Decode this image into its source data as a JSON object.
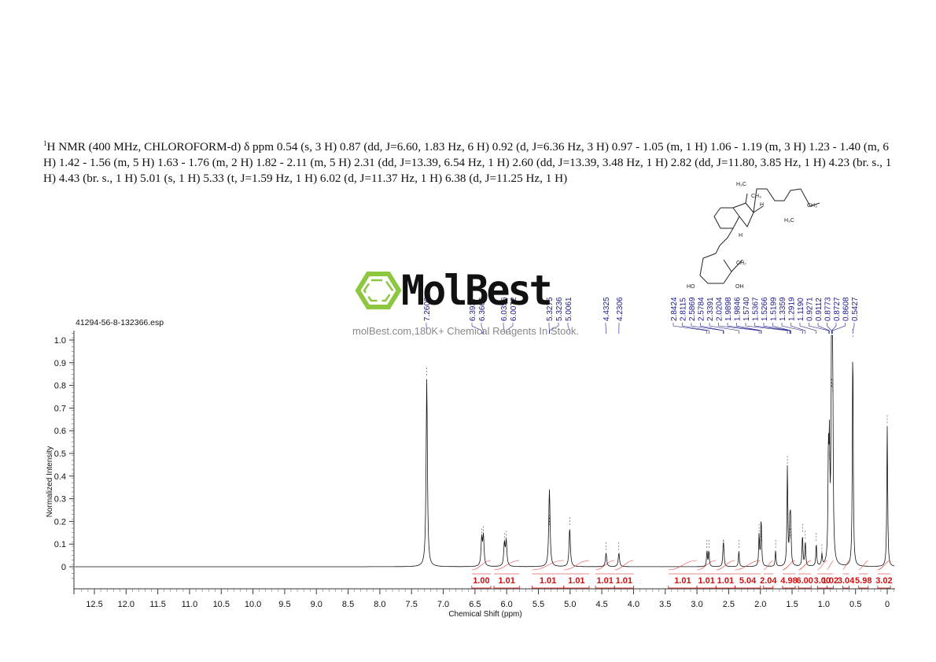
{
  "header": {
    "description_prefix": "1",
    "description": "H NMR (400 MHz, CHLOROFORM-d) δ ppm 0.54 (s, 3 H) 0.87 (dd, J=6.60, 1.83 Hz, 6 H) 0.92 (d, J=6.36 Hz, 3 H) 0.97 - 1.05 (m, 1 H) 1.06 - 1.19 (m, 3 H) 1.23 - 1.40 (m, 6 H) 1.42 - 1.56 (m, 5 H) 1.63 - 1.76 (m, 2 H) 1.82 - 2.11 (m, 5 H) 2.31 (dd, J=13.39, 6.54 Hz, 1 H) 2.60 (dd, J=13.39, 3.48 Hz, 1 H) 2.82 (dd, J=11.80, 3.85 Hz, 1 H) 4.23 (br. s., 1 H) 4.43 (br. s., 1 H) 5.01 (s, 1 H) 5.33 (t, J=1.59 Hz, 1 H) 6.02 (d, J=11.37 Hz, 1 H) 6.38 (d, J=11.25 Hz, 1 H)"
  },
  "watermark": {
    "logo_text": "MolBest",
    "tagline": "molBest.com,180K+ Chemical Reagents In Stock.",
    "logo_color": "#8dc63f"
  },
  "structure": {
    "labels": [
      "H3C",
      "CH3",
      "H",
      "CH3",
      "H3C",
      "H",
      "CH2",
      "HO",
      "OH"
    ]
  },
  "chart_data": {
    "type": "line",
    "title": "",
    "file_label": "41294-56-8-132366.esp",
    "xlabel": "Chemical Shift (ppm)",
    "ylabel": "Normalized Intensity",
    "xlim": [
      12.7,
      -0.1
    ],
    "ylim": [
      -0.05,
      1.05
    ],
    "x_ticks": [
      "12.5",
      "12.0",
      "11.5",
      "11.0",
      "10.5",
      "10.0",
      "9.5",
      "9.0",
      "8.5",
      "8.0",
      "7.5",
      "7.0",
      "6.5",
      "6.0",
      "5.5",
      "5.0",
      "4.5",
      "4.0",
      "3.5",
      "3.0",
      "2.5",
      "2.0",
      "1.5",
      "1.0",
      "0.5",
      "0"
    ],
    "y_ticks": [
      "1.0",
      "0.9",
      "0.8",
      "0.7",
      "0.6",
      "0.5",
      "0.4",
      "0.3",
      "0.2",
      "0.1",
      "0"
    ],
    "grid": false,
    "peak_labels": [
      "7.2600",
      "6.3937",
      "6.3666",
      "6.0356",
      "6.0072",
      "5.3275",
      "5.3236",
      "5.0061",
      "4.4325",
      "4.2306",
      "2.8424",
      "2.8115",
      "2.5869",
      "2.5784",
      "2.3391",
      "2.0204",
      "1.9898",
      "1.9846",
      "1.5740",
      "1.5367",
      "1.5266",
      "1.5199",
      "1.3359",
      "1.2919",
      "1.1190",
      "0.9271",
      "0.9112",
      "0.8773",
      "0.8727",
      "0.8608",
      "0.5427"
    ],
    "peaks": [
      {
        "ppm": 7.26,
        "intensity": 0.83
      },
      {
        "ppm": 6.394,
        "intensity": 0.12
      },
      {
        "ppm": 6.367,
        "intensity": 0.13
      },
      {
        "ppm": 6.036,
        "intensity": 0.1
      },
      {
        "ppm": 6.007,
        "intensity": 0.11
      },
      {
        "ppm": 5.328,
        "intensity": 0.18
      },
      {
        "ppm": 5.324,
        "intensity": 0.17
      },
      {
        "ppm": 5.006,
        "intensity": 0.17
      },
      {
        "ppm": 4.433,
        "intensity": 0.06
      },
      {
        "ppm": 4.231,
        "intensity": 0.06
      },
      {
        "ppm": 2.842,
        "intensity": 0.07
      },
      {
        "ppm": 2.812,
        "intensity": 0.07
      },
      {
        "ppm": 2.587,
        "intensity": 0.07
      },
      {
        "ppm": 2.578,
        "intensity": 0.07
      },
      {
        "ppm": 2.339,
        "intensity": 0.07
      },
      {
        "ppm": 2.02,
        "intensity": 0.14
      },
      {
        "ppm": 1.99,
        "intensity": 0.12
      },
      {
        "ppm": 1.985,
        "intensity": 0.1
      },
      {
        "ppm": 1.76,
        "intensity": 0.07
      },
      {
        "ppm": 1.574,
        "intensity": 0.44
      },
      {
        "ppm": 1.537,
        "intensity": 0.15
      },
      {
        "ppm": 1.527,
        "intensity": 0.12
      },
      {
        "ppm": 1.52,
        "intensity": 0.11
      },
      {
        "ppm": 1.336,
        "intensity": 0.14
      },
      {
        "ppm": 1.292,
        "intensity": 0.11
      },
      {
        "ppm": 1.119,
        "intensity": 0.1
      },
      {
        "ppm": 1.03,
        "intensity": 0.05
      },
      {
        "ppm": 0.927,
        "intensity": 0.47
      },
      {
        "ppm": 0.911,
        "intensity": 0.46
      },
      {
        "ppm": 0.877,
        "intensity": 0.78
      },
      {
        "ppm": 0.873,
        "intensity": 0.78
      },
      {
        "ppm": 0.861,
        "intensity": 0.76
      },
      {
        "ppm": 0.543,
        "intensity": 1.0
      },
      {
        "ppm": 0.0,
        "intensity": 0.62
      }
    ],
    "integrals": [
      {
        "label": "1.00",
        "from": 6.55,
        "to": 6.25
      },
      {
        "label": "1.01",
        "from": 6.2,
        "to": 5.8
      },
      {
        "label": "1.01",
        "from": 5.6,
        "to": 5.1
      },
      {
        "label": "1.01",
        "from": 5.1,
        "to": 4.7
      },
      {
        "label": "1.01",
        "from": 4.6,
        "to": 4.3
      },
      {
        "label": "1.01",
        "from": 4.3,
        "to": 4.0
      },
      {
        "label": "1.01",
        "from": 3.45,
        "to": 3.0
      },
      {
        "label": "1.01",
        "from": 3.0,
        "to": 2.7
      },
      {
        "label": "1.01",
        "from": 2.7,
        "to": 2.4
      },
      {
        "label": "5.04",
        "from": 2.4,
        "to": 2.0
      },
      {
        "label": "2.04",
        "from": 1.95,
        "to": 1.8
      },
      {
        "label": "4.98",
        "from": 1.65,
        "to": 1.45
      },
      {
        "label": "6.00",
        "from": 1.4,
        "to": 1.2
      },
      {
        "label": "3.00",
        "from": 1.1,
        "to": 0.95
      },
      {
        "label": "1.02",
        "from": 0.95,
        "to": 0.85
      },
      {
        "label": "3.04",
        "from": 0.7,
        "to": 0.6
      },
      {
        "label": "5.98",
        "from": 0.45,
        "to": 0.3
      },
      {
        "label": "3.02",
        "from": 0.15,
        "to": -0.05
      }
    ],
    "colors": {
      "spectrum": "#111111",
      "integral": "#d01010",
      "peak_label": "#1a1a8c",
      "axis": "#333333"
    }
  }
}
